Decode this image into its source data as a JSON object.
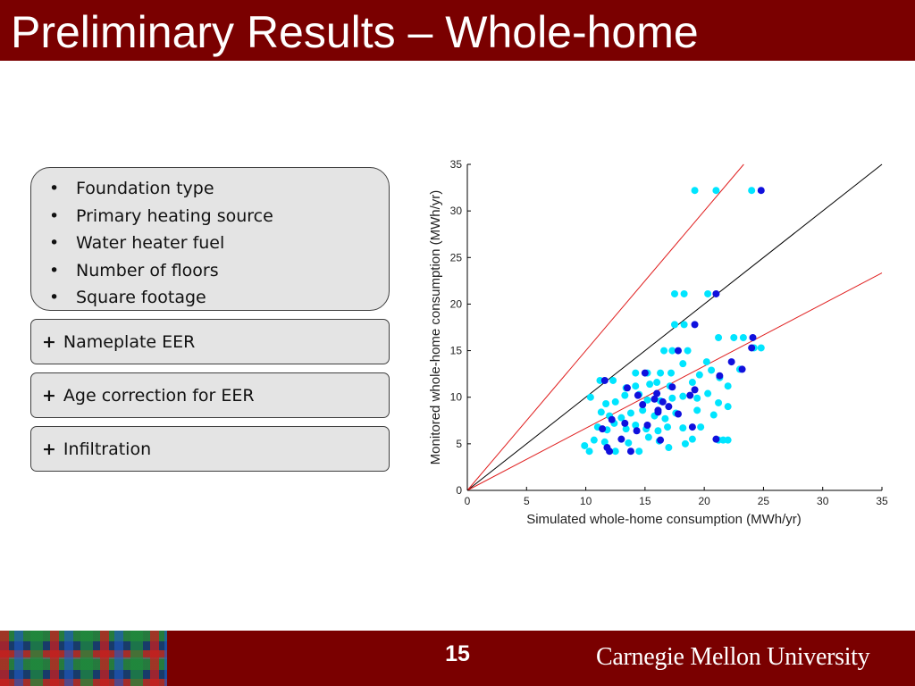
{
  "slide": {
    "title": "Preliminary Results – Whole-home",
    "page_number": "15",
    "university": "Carnegie Mellon University"
  },
  "left_panel": {
    "list_items": [
      "Foundation type",
      "Primary heating source",
      "Water heater fuel",
      "Number of floors",
      "Square footage"
    ],
    "plus_boxes": [
      "Nameplate EER",
      "Age correction for EER",
      "Infiltration"
    ],
    "plus_symbol": "+"
  },
  "chart_data": {
    "type": "scatter",
    "xlabel": "Simulated whole-home consumption (MWh/yr)",
    "ylabel": "Monitored whole-home consumption (MWh/yr)",
    "xlim": [
      0,
      35
    ],
    "ylim": [
      0,
      35
    ],
    "xticks": [
      "0",
      "5",
      "10",
      "15",
      "20",
      "25",
      "30",
      "35"
    ],
    "yticks": [
      "0",
      "5",
      "10",
      "15",
      "20",
      "25",
      "30",
      "35"
    ],
    "grid": false,
    "legend": "none",
    "colors": {
      "light_points": "#00e5ff",
      "dark_points": "#1010dd",
      "identity_line": "#000000",
      "bound_lines": "#e02020"
    },
    "reference_lines": [
      {
        "slope": 1.0,
        "color": "identity_line"
      },
      {
        "slope": 1.5,
        "color": "bound_lines"
      },
      {
        "slope": 0.667,
        "color": "bound_lines"
      }
    ],
    "series": [
      {
        "color": "light_points",
        "points": [
          [
            19.2,
            32.2
          ],
          [
            21.0,
            32.2
          ],
          [
            24.0,
            32.2
          ],
          [
            17.5,
            21.1
          ],
          [
            18.3,
            21.1
          ],
          [
            20.3,
            21.1
          ],
          [
            17.5,
            17.8
          ],
          [
            18.3,
            17.8
          ],
          [
            21.2,
            16.4
          ],
          [
            22.5,
            16.4
          ],
          [
            23.3,
            16.4
          ],
          [
            24.2,
            15.3
          ],
          [
            24.8,
            15.3
          ],
          [
            16.6,
            15.0
          ],
          [
            17.3,
            15.0
          ],
          [
            18.6,
            15.0
          ],
          [
            14.2,
            12.6
          ],
          [
            15.2,
            12.6
          ],
          [
            16.3,
            12.6
          ],
          [
            17.2,
            12.6
          ],
          [
            18.2,
            13.6
          ],
          [
            20.2,
            13.8
          ],
          [
            20.6,
            12.9
          ],
          [
            11.2,
            11.8
          ],
          [
            12.3,
            11.8
          ],
          [
            13.4,
            11.0
          ],
          [
            14.2,
            11.2
          ],
          [
            15.4,
            11.4
          ],
          [
            16.0,
            11.6
          ],
          [
            17.1,
            11.2
          ],
          [
            19.0,
            11.6
          ],
          [
            19.6,
            12.4
          ],
          [
            21.3,
            12.1
          ],
          [
            22.0,
            11.2
          ],
          [
            23.0,
            13.0
          ],
          [
            10.4,
            10.0
          ],
          [
            11.7,
            9.3
          ],
          [
            12.5,
            9.5
          ],
          [
            13.3,
            10.2
          ],
          [
            14.5,
            10.3
          ],
          [
            15.2,
            9.7
          ],
          [
            16.3,
            9.6
          ],
          [
            17.3,
            9.9
          ],
          [
            18.2,
            10.1
          ],
          [
            19.4,
            9.9
          ],
          [
            20.3,
            10.4
          ],
          [
            21.2,
            9.4
          ],
          [
            22.0,
            9.0
          ],
          [
            11.3,
            8.4
          ],
          [
            12.0,
            8.0
          ],
          [
            13.0,
            7.8
          ],
          [
            13.8,
            8.3
          ],
          [
            14.8,
            8.6
          ],
          [
            15.8,
            8.0
          ],
          [
            16.7,
            7.7
          ],
          [
            17.6,
            8.3
          ],
          [
            19.4,
            8.6
          ],
          [
            20.8,
            8.1
          ],
          [
            11.0,
            6.8
          ],
          [
            11.8,
            6.5
          ],
          [
            12.4,
            7.2
          ],
          [
            13.4,
            6.6
          ],
          [
            14.2,
            7.0
          ],
          [
            15.1,
            6.6
          ],
          [
            16.1,
            6.4
          ],
          [
            16.9,
            6.8
          ],
          [
            18.2,
            6.7
          ],
          [
            19.7,
            6.8
          ],
          [
            9.9,
            4.8
          ],
          [
            10.3,
            4.2
          ],
          [
            10.7,
            5.4
          ],
          [
            11.6,
            5.2
          ],
          [
            12.5,
            4.2
          ],
          [
            13.6,
            5.1
          ],
          [
            14.5,
            4.2
          ],
          [
            15.3,
            5.7
          ],
          [
            16.2,
            5.3
          ],
          [
            17.0,
            4.6
          ],
          [
            18.4,
            5.0
          ],
          [
            19.0,
            5.5
          ],
          [
            21.2,
            5.4
          ],
          [
            21.6,
            5.4
          ],
          [
            22.0,
            5.4
          ]
        ]
      },
      {
        "color": "dark_points",
        "points": [
          [
            24.8,
            32.2
          ],
          [
            21.0,
            21.1
          ],
          [
            19.2,
            17.8
          ],
          [
            24.1,
            16.4
          ],
          [
            24.0,
            15.3
          ],
          [
            17.8,
            15.0
          ],
          [
            22.3,
            13.8
          ],
          [
            23.2,
            13.0
          ],
          [
            21.3,
            12.3
          ],
          [
            15.0,
            12.6
          ],
          [
            11.6,
            11.8
          ],
          [
            13.5,
            11.0
          ],
          [
            16.0,
            10.4
          ],
          [
            17.3,
            11.1
          ],
          [
            19.2,
            10.8
          ],
          [
            14.4,
            10.2
          ],
          [
            15.8,
            9.8
          ],
          [
            16.5,
            9.5
          ],
          [
            17.0,
            9.0
          ],
          [
            18.8,
            10.2
          ],
          [
            14.8,
            9.2
          ],
          [
            16.1,
            8.6
          ],
          [
            17.8,
            8.2
          ],
          [
            12.2,
            7.6
          ],
          [
            13.3,
            7.2
          ],
          [
            14.3,
            6.4
          ],
          [
            15.2,
            7.0
          ],
          [
            11.4,
            6.6
          ],
          [
            13.0,
            5.5
          ],
          [
            11.8,
            4.6
          ],
          [
            12.0,
            4.2
          ],
          [
            13.8,
            4.2
          ],
          [
            16.3,
            5.4
          ],
          [
            19.0,
            6.8
          ],
          [
            21.0,
            5.5
          ],
          [
            16.1,
            8.4
          ]
        ]
      }
    ]
  }
}
